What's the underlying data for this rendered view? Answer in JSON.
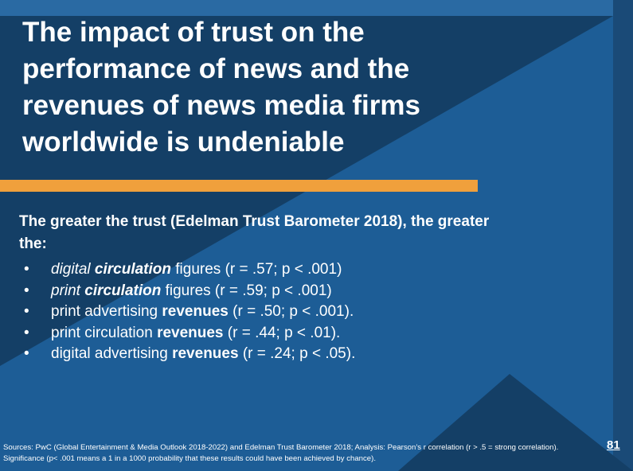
{
  "title": "The impact of trust on the performance of news and the revenues of news media firms worldwide is undeniable",
  "lead": "The greater the trust (Edelman Trust Barometer 2018), the greater the:",
  "bullets": [
    {
      "marker": "•",
      "p1": "digital ",
      "p2": "circulation",
      "p3": " figures (r = .57; p < .001)"
    },
    {
      "marker": "•",
      "p1": "print ",
      "p2": "circulation",
      "p3": " figures (r = .59; p < .001)"
    },
    {
      "marker": "•",
      "p1": "print advertising ",
      "p2": "revenues",
      "p3": " (r = .50; p < .001)."
    },
    {
      "marker": "•",
      "p1": "print circulation ",
      "p2": "revenues",
      "p3": " (r = .44; p < .01)."
    },
    {
      "marker": "•",
      "p1": "digital advertising ",
      "p2": "revenues",
      "p3": " (r = .24; p < .05)."
    }
  ],
  "footer": "Sources: PwC (Global Entertainment & Media Outlook 2018-2022) and Edelman Trust Barometer 2018; Analysis: Pearson’s r correlation (r > .5 = strong correlation). Significance (p< .001 means a 1 in a 1000 probability that these results could have been achieved by chance).",
  "page_number": "81",
  "colors": {
    "background": "#1d5d96",
    "dark_shape": "#143f66",
    "accent_bar": "#f0a03c",
    "text": "#ffffff"
  }
}
